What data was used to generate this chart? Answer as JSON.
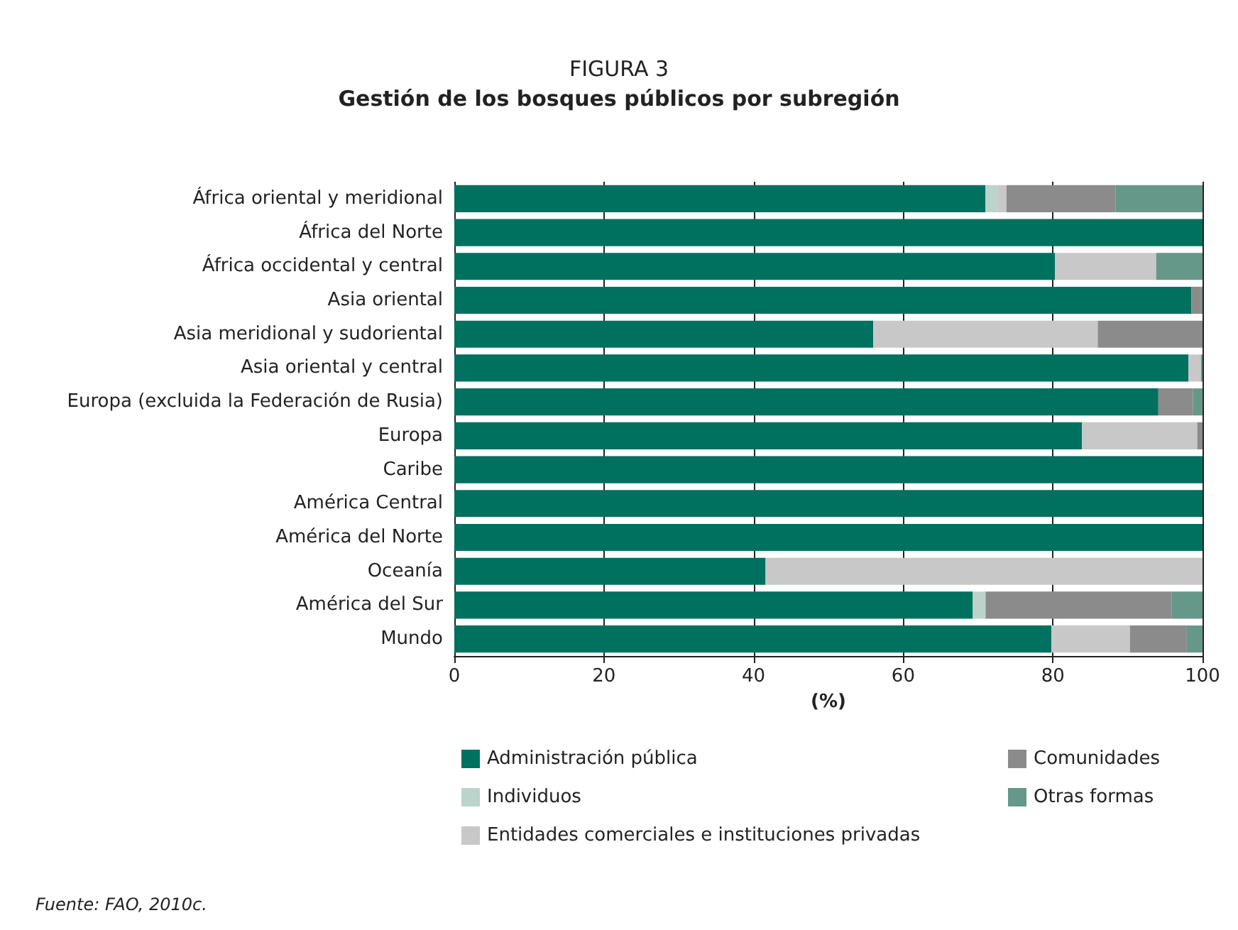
{
  "chart_data": {
    "type": "bar",
    "orientation": "horizontal",
    "stacked": true,
    "title": "FIGURA 3",
    "subtitle": "Gestión de los bosques públicos por subregión",
    "xlabel": "(%)",
    "categories": [
      "África oriental y meridional",
      "África del Norte",
      "África occidental y central",
      "Asia oriental",
      "Asia meridional y sudoriental",
      "Asia oriental y central",
      "Europa (excluida la Federación de Rusia)",
      "Europa",
      "Caribe",
      "América Central",
      "América del Norte",
      "Oceanía",
      "América del Sur",
      "Mundo"
    ],
    "series": [
      {
        "name": "Administración pública",
        "color": "#00705f",
        "values": [
          71,
          100,
          80.3,
          98.5,
          56,
          98.1,
          94.1,
          83.9,
          100,
          100,
          100,
          41.6,
          69.3,
          79.8
        ]
      },
      {
        "name": "Individuos",
        "color": "#bcd3cc",
        "values": [
          1.6,
          0,
          0,
          0,
          0,
          0,
          0,
          0,
          0,
          0,
          0,
          0,
          1.7,
          0
        ]
      },
      {
        "name": "Entidades comerciales e instituciones privadas",
        "color": "#c8c8c9",
        "values": [
          1.2,
          0,
          13.5,
          0,
          30,
          1.7,
          0,
          15.4,
          0,
          0,
          0,
          58.4,
          0,
          10.5
        ]
      },
      {
        "name": "Comunidades",
        "color": "#8b8b8c",
        "values": [
          14.6,
          0,
          0,
          1.3,
          14,
          0,
          4.6,
          0.7,
          0,
          0,
          0,
          0,
          24.9,
          7.6
        ]
      },
      {
        "name": "Otras formas",
        "color": "#66988a",
        "values": [
          11.6,
          0,
          6.2,
          0.2,
          0,
          0.2,
          1.3,
          0,
          0,
          0,
          0,
          0,
          4.1,
          2.1
        ]
      }
    ],
    "xlim": [
      0,
      100
    ],
    "xticks": [
      0,
      20,
      40,
      60,
      80,
      100
    ],
    "grid": "x",
    "legend": "bottom",
    "annotations": [
      "Fuente: FAO, 2010c."
    ]
  }
}
